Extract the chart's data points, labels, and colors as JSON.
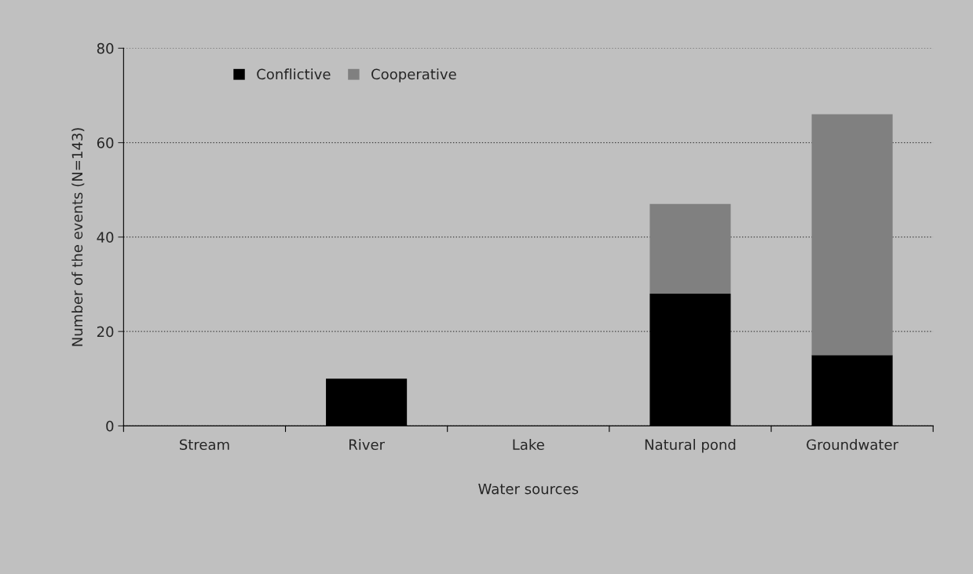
{
  "chart_data": {
    "type": "bar",
    "stacked": true,
    "xlabel": "Water sources",
    "ylabel": "Number of the events (N=143)",
    "categories": [
      "Stream",
      "River",
      "Lake",
      "Natural pond",
      "Groundwater"
    ],
    "series": [
      {
        "name": "Conflictive",
        "color": "#000000",
        "values": [
          0,
          10,
          0,
          28,
          15
        ]
      },
      {
        "name": "Cooperative",
        "color": "#808080",
        "values": [
          0,
          0,
          0,
          19,
          51
        ]
      }
    ],
    "ylim": [
      0,
      80
    ],
    "yticks": [
      0,
      20,
      40,
      60,
      80
    ],
    "grid": "y",
    "legend": "top left"
  }
}
